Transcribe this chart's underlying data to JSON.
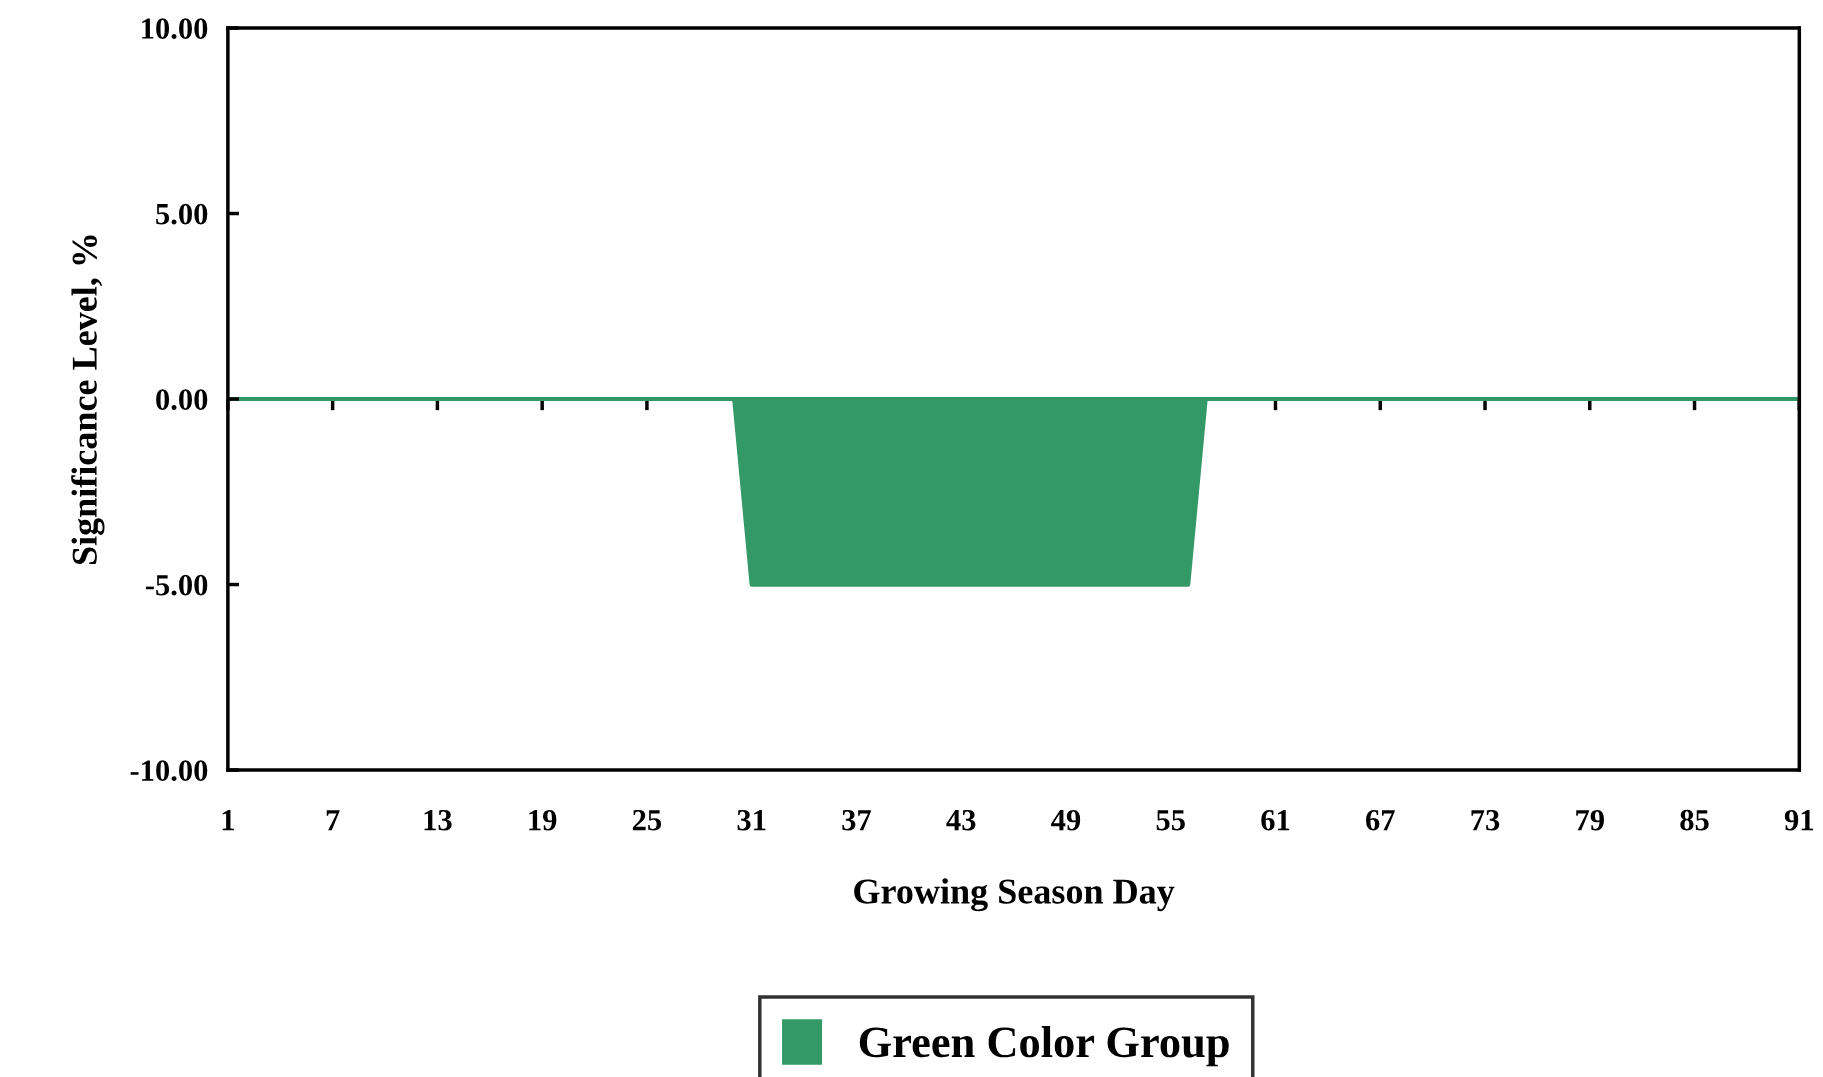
{
  "chart_data": {
    "type": "area",
    "xlabel": "Growing Season Day",
    "ylabel": "Significance Level, %",
    "x": [
      1,
      30,
      31,
      56,
      57,
      91
    ],
    "series": [
      {
        "name": "Green Color Group",
        "color": "#339966",
        "values": [
          0,
          0,
          -5,
          -5,
          0,
          0
        ]
      }
    ],
    "xlim": [
      1,
      91
    ],
    "xticks": [
      1,
      7,
      13,
      19,
      25,
      31,
      37,
      43,
      49,
      55,
      61,
      67,
      73,
      79,
      85,
      91
    ],
    "ylim": [
      -10,
      10
    ],
    "yticks": [
      {
        "value": -10,
        "label": "-10.00"
      },
      {
        "value": -5,
        "label": "-5.00"
      },
      {
        "value": 0,
        "label": "0.00"
      },
      {
        "value": 5,
        "label": "5.00"
      },
      {
        "value": 10,
        "label": "10.00"
      }
    ],
    "grid": false,
    "legend": "bottom"
  }
}
